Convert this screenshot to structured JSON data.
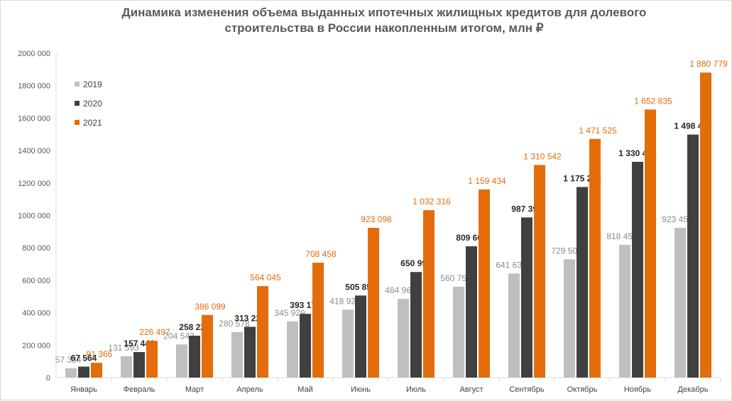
{
  "chart_data": {
    "type": "bar",
    "title_lines": [
      "Динамика изменения объема выданных ипотечных жилищных кредитов для долевого",
      "строительства  в России накопленным итогом, млн ₽"
    ],
    "categories": [
      "Январь",
      "Февраль",
      "Март",
      "Апрель",
      "Май",
      "Июнь",
      "Июль",
      "Август",
      "Сентябрь",
      "Октябрь",
      "Ноябрь",
      "Декабрь"
    ],
    "series": [
      {
        "name": "2019",
        "color": "#bfbfbf",
        "values": [
          57334,
          131593,
          204543,
          280578,
          345929,
          418923,
          484960,
          560756,
          641636,
          729502,
          818452,
          923450
        ],
        "labels": [
          "57 334",
          "131 593",
          "204 543",
          "280 578",
          "345 929",
          "418 923",
          "484 960",
          "560 756",
          "641 636",
          "729 502",
          "818 452",
          "923 450"
        ]
      },
      {
        "name": "2020",
        "color": "#404040",
        "values": [
          67564,
          157446,
          258227,
          313221,
          393171,
          505857,
          650991,
          809601,
          987392,
          1175226,
          1330468,
          1498476
        ],
        "labels": [
          "67 564",
          "157 446",
          "258 227",
          "313 221",
          "393 171",
          "505 857",
          "650 991",
          "809 601",
          "987 392",
          "1 175 226",
          "1 330 468",
          "1 498 476"
        ]
      },
      {
        "name": "2021",
        "color": "#e46c0a",
        "values": [
          91366,
          226497,
          386099,
          564045,
          708458,
          923098,
          1032316,
          1159434,
          1310542,
          1471525,
          1652835,
          1880779
        ],
        "labels": [
          "91 366",
          "226 497",
          "386 099",
          "564 045",
          "708 458",
          "923 098",
          "1 032 316",
          "1 159 434",
          "1 310 542",
          "1 471 525",
          "1 652 835",
          "1 880 779"
        ]
      }
    ],
    "ylim": [
      0,
      2000000
    ],
    "yticks": [
      0,
      200000,
      400000,
      600000,
      800000,
      1000000,
      1200000,
      1400000,
      1600000,
      1800000,
      2000000
    ],
    "ytick_labels": [
      "0",
      "200 000",
      "400 000",
      "600 000",
      "800 000",
      "1000 000",
      "1200 000",
      "1400 000",
      "1600 000",
      "1800 000",
      "2000 000"
    ],
    "grid": false,
    "legend_position": "top-left"
  }
}
